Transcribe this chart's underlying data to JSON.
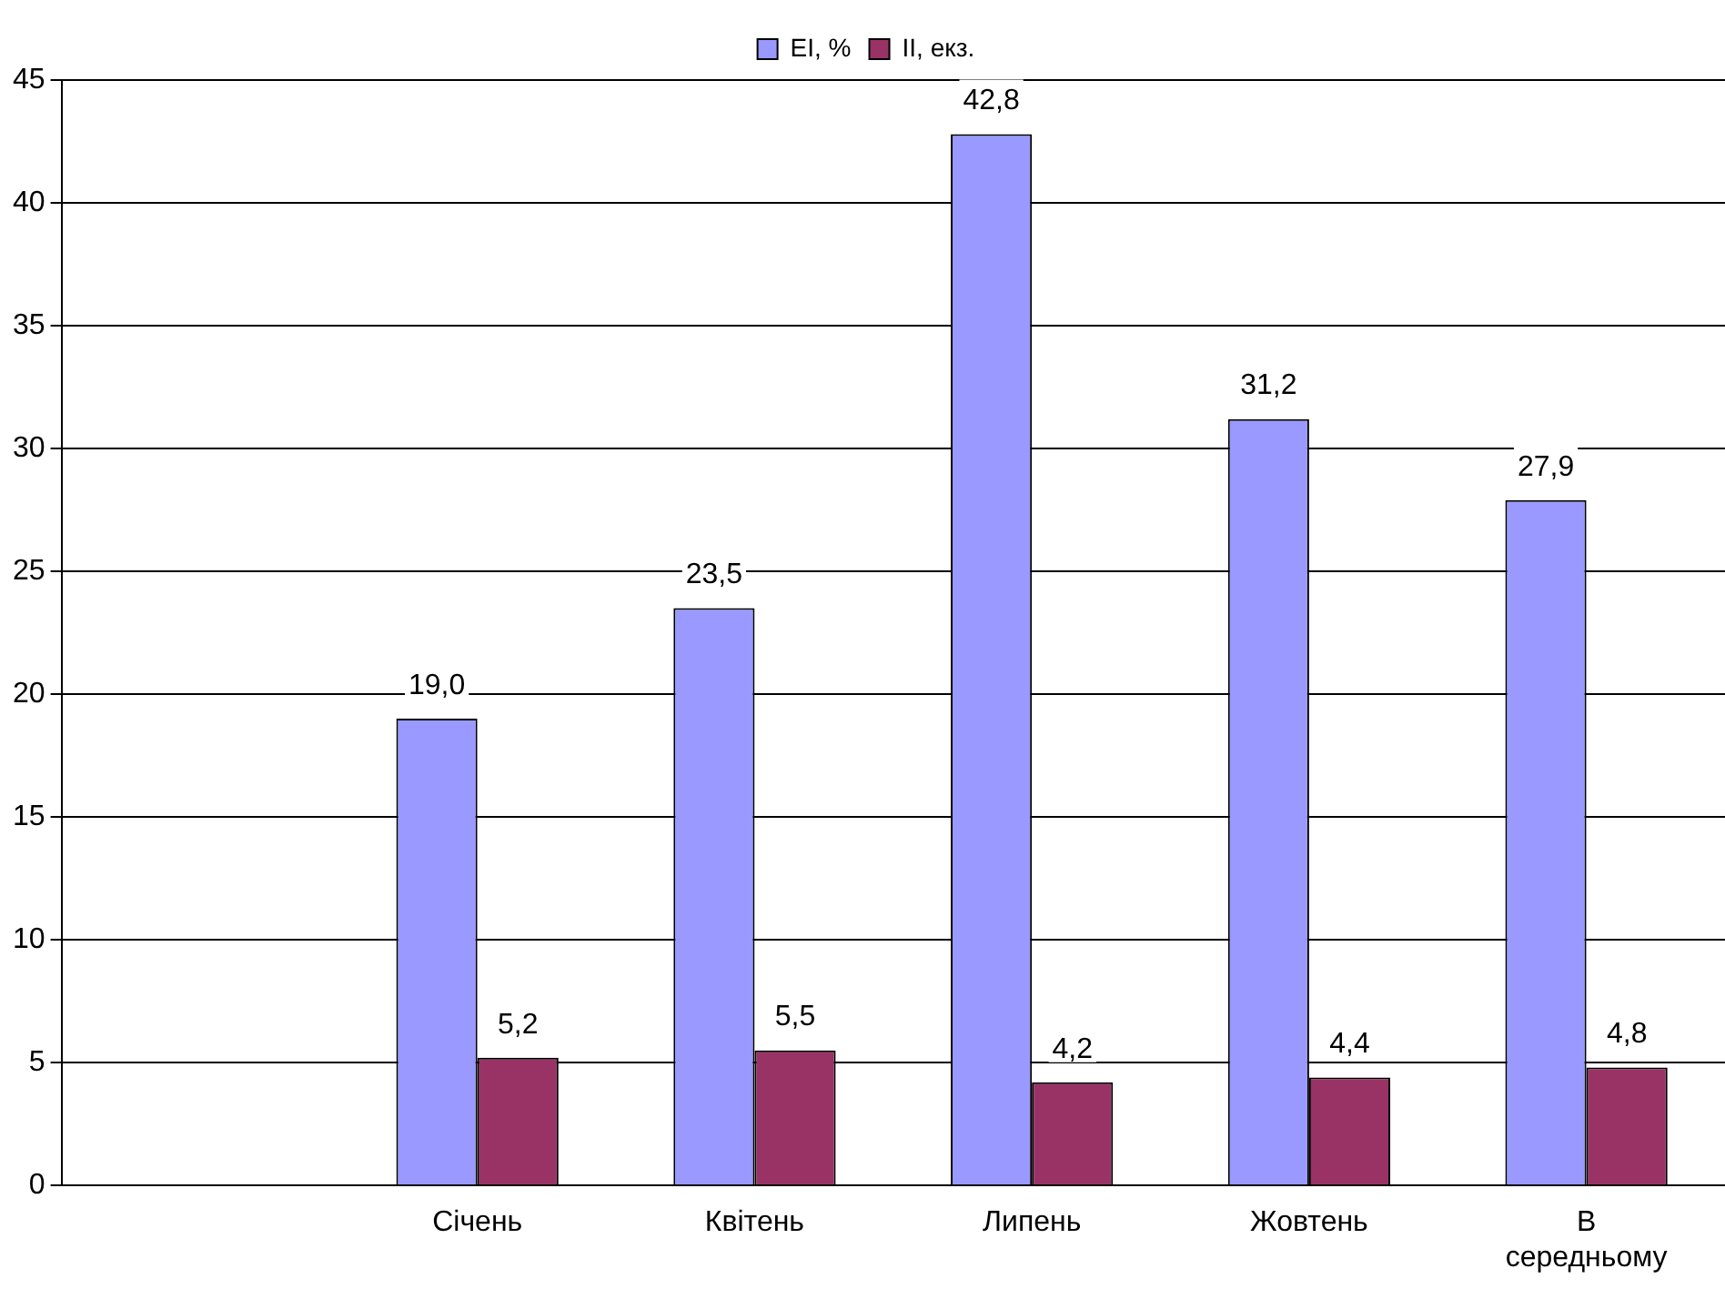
{
  "chart_data": {
    "type": "bar",
    "categories": [
      null,
      "Січень",
      "Квітень",
      "Липень",
      "Жовтень",
      "В середньому"
    ],
    "series": [
      {
        "name": "ЕІ, %",
        "color": "#9999ff",
        "values": [
          null,
          19.0,
          23.5,
          42.8,
          31.2,
          27.9
        ],
        "value_labels": [
          null,
          "19,0",
          "23,5",
          "42,8",
          "31,2",
          "27,9"
        ]
      },
      {
        "name": "ІІ, екз.",
        "color": "#993366",
        "values": [
          null,
          5.2,
          5.5,
          4.2,
          4.4,
          4.8
        ],
        "value_labels": [
          null,
          "5,2",
          "5,5",
          "4,2",
          "4,4",
          "4,8"
        ]
      }
    ],
    "ylim": [
      0,
      45
    ],
    "yticks": [
      0,
      5,
      10,
      15,
      20,
      25,
      30,
      35,
      40,
      45
    ],
    "grid": "y",
    "legend": "top"
  }
}
